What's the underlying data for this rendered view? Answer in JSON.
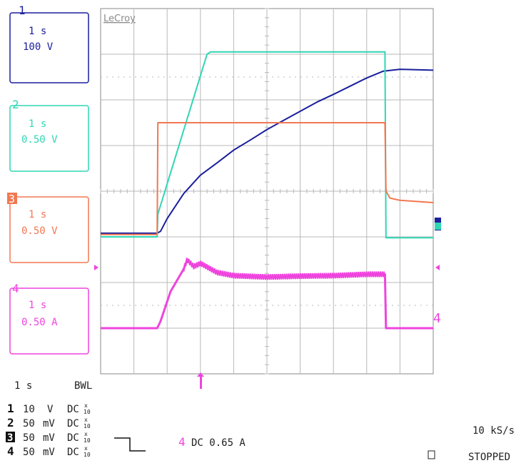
{
  "brand": "LeCroy",
  "colors": {
    "ch1": "#1a1f9c",
    "ch2": "#2fd6b4",
    "ch3": "#f07852",
    "ch4": "#ee44dd",
    "grid": "#b8b8b8",
    "frame": "#8a8a8a"
  },
  "channels": [
    {
      "num": "1",
      "time": "1 s",
      "scale": "100 V"
    },
    {
      "num": "2",
      "time": "1 s",
      "scale": "0.50 V"
    },
    {
      "num": "3",
      "time": "1 s",
      "scale": "0.50 V"
    },
    {
      "num": "4",
      "time": "1 s",
      "scale": "0.50 A"
    }
  ],
  "timebase": {
    "time": "1 s",
    "bwl": "BWL"
  },
  "coupling": [
    {
      "num": "1",
      "volts": "10",
      "unit": "V",
      "mode": "DC",
      "probe_top": "x",
      "probe_bottom": "10"
    },
    {
      "num": "2",
      "volts": "50",
      "unit": "mV",
      "mode": "DC",
      "probe_top": "x",
      "probe_bottom": "10"
    },
    {
      "num": "3",
      "volts": "50",
      "unit": "mV",
      "mode": "DC",
      "probe_top": "x",
      "probe_bottom": "10"
    },
    {
      "num": "4",
      "volts": "50",
      "unit": "mV",
      "mode": "DC",
      "probe_top": "x",
      "probe_bottom": "10"
    }
  ],
  "trigger": {
    "channel": "4",
    "text": "DC 0.65 A"
  },
  "sample_rate": "10 kS/s",
  "status": "STOPPED",
  "chart_data": {
    "type": "line",
    "x_unit": "divisions",
    "xlim": [
      0,
      10
    ],
    "ylim": [
      0,
      8
    ],
    "grid": true,
    "trigger_position_div": 3,
    "series": [
      {
        "id": "ch1",
        "num": "1",
        "x": [
          0,
          1.7,
          1.8,
          2.0,
          2.5,
          3.0,
          3.5,
          4.0,
          4.5,
          5.0,
          5.5,
          6.0,
          6.5,
          7.0,
          7.5,
          8.0,
          8.5,
          9.0,
          10.0
        ],
        "y": [
          3.08,
          3.08,
          3.12,
          3.4,
          3.95,
          4.35,
          4.62,
          4.9,
          5.12,
          5.35,
          5.55,
          5.75,
          5.95,
          6.12,
          6.3,
          6.48,
          6.63,
          6.67,
          6.65
        ]
      },
      {
        "id": "ch2",
        "num": "2",
        "x": [
          0,
          1.7,
          1.72,
          3.2,
          3.3,
          8.55,
          8.58,
          10.0
        ],
        "y": [
          3.0,
          3.0,
          3.5,
          7.0,
          7.05,
          7.05,
          2.98,
          2.98
        ]
      },
      {
        "id": "ch3",
        "num": "3",
        "x": [
          0,
          1.7,
          1.72,
          8.55,
          8.58,
          8.7,
          9.0,
          10.0
        ],
        "y": [
          3.05,
          3.05,
          5.5,
          5.5,
          4.0,
          3.85,
          3.8,
          3.75
        ]
      },
      {
        "id": "ch4",
        "num": "4",
        "x": [
          0,
          1.7,
          1.8,
          2.1,
          2.5,
          2.6,
          2.8,
          3.0,
          3.5,
          4.0,
          5.0,
          6.0,
          7.0,
          8.0,
          8.55,
          8.58,
          10.0
        ],
        "y": [
          1.0,
          1.0,
          1.15,
          1.8,
          2.3,
          2.5,
          2.35,
          2.42,
          2.22,
          2.15,
          2.12,
          2.14,
          2.15,
          2.18,
          2.18,
          1.0,
          1.0
        ]
      }
    ]
  }
}
